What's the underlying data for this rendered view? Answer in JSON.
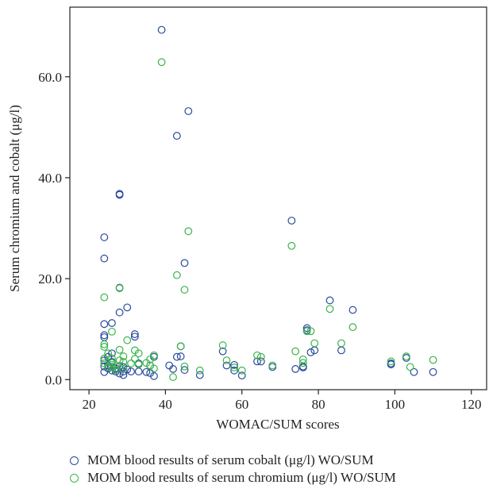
{
  "chart_data": {
    "type": "scatter",
    "xlabel": "WOMAC/SUM scores",
    "ylabel": "Serum chromium and cobalt (μg/l)",
    "xlim": [
      15,
      124
    ],
    "ylim": [
      -2,
      73.8
    ],
    "x_ticks": [
      20,
      40,
      60,
      80,
      100,
      120
    ],
    "y_ticks": [
      0,
      20,
      40,
      60
    ],
    "x_tick_labels": [
      "20",
      "40",
      "60",
      "80",
      "100",
      "120"
    ],
    "y_tick_labels": [
      "0.0",
      "20.0",
      "40.0",
      "60.0"
    ],
    "grid": false,
    "legend_position": "bottom",
    "series": [
      {
        "name": "MOM blood results of serum cobalt (μg/l) WO/SUM",
        "color": "#2b4a9e",
        "points": [
          [
            24,
            28.2
          ],
          [
            24,
            24
          ],
          [
            24,
            11
          ],
          [
            24,
            8.8
          ],
          [
            24,
            8.4
          ],
          [
            24,
            3.8
          ],
          [
            24,
            2.6
          ],
          [
            24,
            1.5
          ],
          [
            25,
            2.2
          ],
          [
            25,
            2.8
          ],
          [
            25,
            4.5
          ],
          [
            26,
            11.2
          ],
          [
            26,
            5.2
          ],
          [
            26,
            3.5
          ],
          [
            26,
            2.5
          ],
          [
            26,
            1.8
          ],
          [
            27,
            2.2
          ],
          [
            27,
            1.6
          ],
          [
            28,
            36.8
          ],
          [
            28,
            36.6
          ],
          [
            28,
            18.2
          ],
          [
            28,
            13.3
          ],
          [
            28,
            2.7
          ],
          [
            28,
            1.2
          ],
          [
            29,
            2.5
          ],
          [
            29,
            1.6
          ],
          [
            29,
            0.9
          ],
          [
            30,
            14.3
          ],
          [
            30,
            2
          ],
          [
            31,
            1.6
          ],
          [
            32,
            9
          ],
          [
            32,
            8.5
          ],
          [
            33,
            3.2
          ],
          [
            33,
            1.6
          ],
          [
            35,
            1.5
          ],
          [
            36,
            2.8
          ],
          [
            36,
            1.3
          ],
          [
            37,
            4.5
          ],
          [
            37,
            0.7
          ],
          [
            39,
            69.3
          ],
          [
            41,
            2.8
          ],
          [
            42,
            2.1
          ],
          [
            43,
            48.3
          ],
          [
            43,
            4.5
          ],
          [
            44,
            6.6
          ],
          [
            44,
            4.6
          ],
          [
            45,
            23.1
          ],
          [
            45,
            1.9
          ],
          [
            46,
            53.2
          ],
          [
            49,
            0.9
          ],
          [
            55,
            5.6
          ],
          [
            56,
            2.8
          ],
          [
            58,
            2.9
          ],
          [
            58,
            1.8
          ],
          [
            60,
            0.8
          ],
          [
            64,
            3.6
          ],
          [
            65,
            3.6
          ],
          [
            68,
            2.5
          ],
          [
            73,
            31.5
          ],
          [
            74,
            2.1
          ],
          [
            76,
            2.6
          ],
          [
            76,
            2.4
          ],
          [
            77,
            10.2
          ],
          [
            77,
            9.8
          ],
          [
            78,
            5.4
          ],
          [
            79,
            5.8
          ],
          [
            83,
            15.7
          ],
          [
            86,
            5.8
          ],
          [
            89,
            13.8
          ],
          [
            99,
            3.2
          ],
          [
            99,
            3
          ],
          [
            103,
            4.3
          ],
          [
            105,
            1.5
          ],
          [
            110,
            1.5
          ]
        ]
      },
      {
        "name": "MOM blood results of serum chromium (μg/l) WO/SUM",
        "color": "#39b54a",
        "points": [
          [
            24,
            16.3
          ],
          [
            24,
            7
          ],
          [
            24,
            6.5
          ],
          [
            24,
            4.2
          ],
          [
            24,
            3.2
          ],
          [
            25,
            2.5
          ],
          [
            25,
            5.2
          ],
          [
            26,
            9.5
          ],
          [
            26,
            4.2
          ],
          [
            26,
            3.3
          ],
          [
            26,
            2.5
          ],
          [
            27,
            1.9
          ],
          [
            27,
            2.8
          ],
          [
            28,
            18.1
          ],
          [
            28,
            5.9
          ],
          [
            28,
            3.8
          ],
          [
            29,
            4.6
          ],
          [
            29,
            3.5
          ],
          [
            29,
            2.1
          ],
          [
            30,
            7.8
          ],
          [
            31,
            3.2
          ],
          [
            32,
            5.8
          ],
          [
            32,
            4.1
          ],
          [
            33,
            5.2
          ],
          [
            33,
            3
          ],
          [
            35,
            3.3
          ],
          [
            36,
            4
          ],
          [
            36,
            2.8
          ],
          [
            37,
            4.8
          ],
          [
            37,
            2.2
          ],
          [
            39,
            62.9
          ],
          [
            42,
            0.5
          ],
          [
            43,
            20.7
          ],
          [
            44,
            6.6
          ],
          [
            45,
            17.8
          ],
          [
            45,
            2.6
          ],
          [
            46,
            29.4
          ],
          [
            49,
            1.8
          ],
          [
            55,
            6.8
          ],
          [
            56,
            3.8
          ],
          [
            58,
            2.4
          ],
          [
            60,
            1.8
          ],
          [
            64,
            4.8
          ],
          [
            65,
            4.5
          ],
          [
            68,
            2.8
          ],
          [
            73,
            26.5
          ],
          [
            74,
            5.6
          ],
          [
            76,
            4
          ],
          [
            76,
            3.3
          ],
          [
            77,
            9.6
          ],
          [
            78,
            9.6
          ],
          [
            79,
            7.2
          ],
          [
            83,
            14
          ],
          [
            86,
            7.2
          ],
          [
            89,
            10.4
          ],
          [
            99,
            3.6
          ],
          [
            103,
            4.6
          ],
          [
            104,
            2.5
          ],
          [
            110,
            3.9
          ]
        ]
      }
    ]
  }
}
